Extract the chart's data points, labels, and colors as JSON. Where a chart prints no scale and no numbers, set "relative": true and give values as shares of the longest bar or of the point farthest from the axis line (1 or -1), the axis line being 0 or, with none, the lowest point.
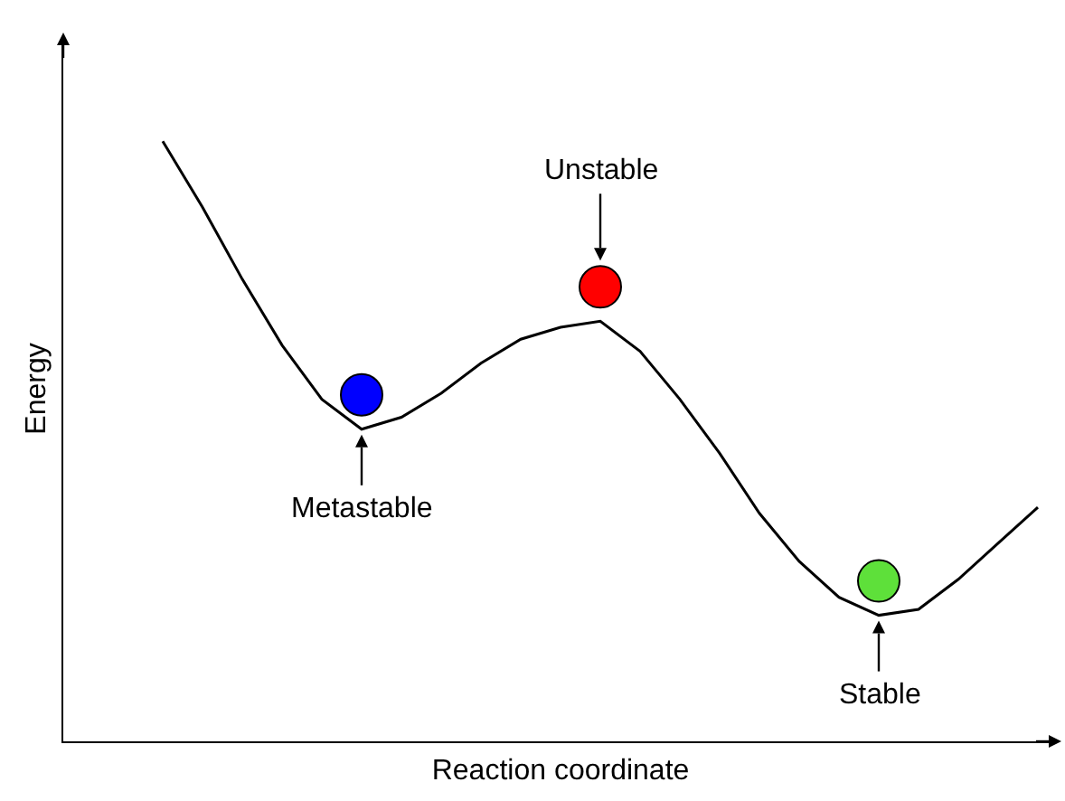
{
  "chart_data": {
    "type": "line",
    "relative": true,
    "xlabel": "Reaction coordinate",
    "ylabel": "Energy",
    "categories": [
      null,
      null,
      null,
      null,
      null,
      null,
      null,
      null,
      null,
      null,
      null,
      null,
      null,
      null,
      null,
      null,
      null,
      null,
      null,
      null,
      null,
      null,
      null
    ],
    "series": [
      {
        "color": "#000000",
        "values": [
          1,
          0.89,
          0.77,
          0.66,
          0.57,
          0.52,
          0.54,
          0.58,
          0.63,
          0.67,
          0.69,
          0.7,
          0.65,
          0.57,
          0.48,
          0.38,
          0.3,
          0.24,
          0.21,
          0.22,
          0.27,
          0.33,
          0.39
        ]
      }
    ],
    "annotations": [
      "Metastable",
      "Unstable",
      "Stable"
    ]
  }
}
